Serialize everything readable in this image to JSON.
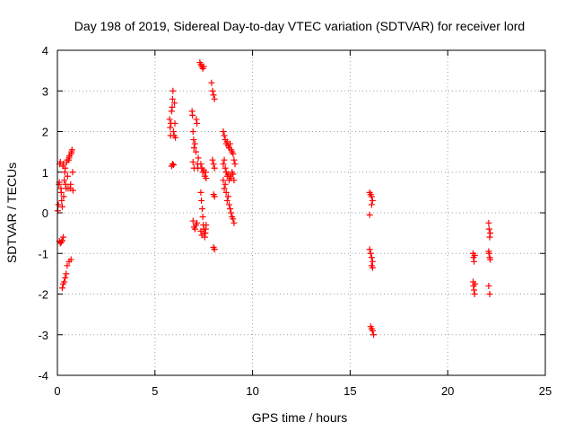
{
  "chart_data": {
    "type": "scatter",
    "title": "Day 198 of 2019, Sidereal Day-to-day VTEC variation (SDTVAR) for receiver lord",
    "xlabel": "GPS time / hours",
    "ylabel": "SDTVAR / TECUs",
    "xlim": [
      0,
      25
    ],
    "ylim": [
      -4,
      4
    ],
    "xticks": [
      0,
      5,
      10,
      15,
      20,
      25
    ],
    "yticks": [
      -4,
      -3,
      -2,
      -1,
      0,
      1,
      2,
      3,
      4
    ],
    "grid": true,
    "marker": "+",
    "series": [
      {
        "name": "SDTVAR",
        "color": "#ff0000",
        "points": [
          [
            0.02,
            0.05
          ],
          [
            0.05,
            0.2
          ],
          [
            0.08,
            0.7
          ],
          [
            0.1,
            0.75
          ],
          [
            0.12,
            1.2
          ],
          [
            0.15,
            1.25
          ],
          [
            0.18,
            0.6
          ],
          [
            0.2,
            0.5
          ],
          [
            0.22,
            0.3
          ],
          [
            0.25,
            0.15
          ],
          [
            0.28,
            1.15
          ],
          [
            0.3,
            1.2
          ],
          [
            0.32,
            0.4
          ],
          [
            0.35,
            0.8
          ],
          [
            0.38,
            1.0
          ],
          [
            0.4,
            1.1
          ],
          [
            0.42,
            0.7
          ],
          [
            0.45,
            0.6
          ],
          [
            0.48,
            1.25
          ],
          [
            0.5,
            1.3
          ],
          [
            0.52,
            0.9
          ],
          [
            0.55,
            0.6
          ],
          [
            0.58,
            1.3
          ],
          [
            0.6,
            1.35
          ],
          [
            0.62,
            1.4
          ],
          [
            0.65,
            0.6
          ],
          [
            0.68,
            0.7
          ],
          [
            0.7,
            1.45
          ],
          [
            0.72,
            1.5
          ],
          [
            0.75,
            1.55
          ],
          [
            0.78,
            1.0
          ],
          [
            0.8,
            0.55
          ],
          [
            0.1,
            -0.7
          ],
          [
            0.15,
            -0.75
          ],
          [
            0.2,
            -0.72
          ],
          [
            0.25,
            -0.68
          ],
          [
            0.3,
            -0.6
          ],
          [
            0.25,
            -1.85
          ],
          [
            0.3,
            -1.75
          ],
          [
            0.35,
            -1.7
          ],
          [
            0.4,
            -1.6
          ],
          [
            0.45,
            -1.5
          ],
          [
            0.5,
            -1.3
          ],
          [
            0.6,
            -1.2
          ],
          [
            0.7,
            -1.15
          ],
          [
            5.75,
            2.3
          ],
          [
            5.78,
            2.1
          ],
          [
            5.8,
            1.9
          ],
          [
            5.82,
            2.2
          ],
          [
            5.85,
            2.5
          ],
          [
            5.88,
            2.6
          ],
          [
            5.9,
            2.8
          ],
          [
            5.92,
            3.0
          ],
          [
            5.95,
            2.0
          ],
          [
            5.98,
            1.9
          ],
          [
            6.0,
            2.7
          ],
          [
            6.02,
            2.2
          ],
          [
            6.05,
            1.85
          ],
          [
            5.85,
            1.15
          ],
          [
            5.9,
            1.2
          ],
          [
            5.95,
            1.18
          ],
          [
            6.9,
            2.5
          ],
          [
            6.92,
            2.4
          ],
          [
            6.95,
            2.0
          ],
          [
            6.98,
            1.8
          ],
          [
            7.0,
            1.6
          ],
          [
            7.05,
            1.7
          ],
          [
            7.1,
            1.5
          ],
          [
            7.12,
            2.3
          ],
          [
            7.15,
            2.2
          ],
          [
            7.18,
            1.2
          ],
          [
            7.2,
            1.1
          ],
          [
            7.22,
            1.35
          ],
          [
            6.95,
            1.25
          ],
          [
            7.0,
            1.1
          ],
          [
            6.95,
            -0.2
          ],
          [
            7.0,
            -0.35
          ],
          [
            7.05,
            -0.4
          ],
          [
            7.1,
            -0.3
          ],
          [
            7.15,
            -0.25
          ],
          [
            7.3,
            3.7
          ],
          [
            7.35,
            3.65
          ],
          [
            7.4,
            3.6
          ],
          [
            7.45,
            3.55
          ],
          [
            7.5,
            3.6
          ],
          [
            7.35,
            1.2
          ],
          [
            7.4,
            1.1
          ],
          [
            7.45,
            1.0
          ],
          [
            7.5,
            1.05
          ],
          [
            7.55,
            0.9
          ],
          [
            7.6,
            1.0
          ],
          [
            7.62,
            0.85
          ],
          [
            7.35,
            0.5
          ],
          [
            7.38,
            0.3
          ],
          [
            7.42,
            0.1
          ],
          [
            7.45,
            -0.1
          ],
          [
            7.48,
            -0.3
          ],
          [
            7.5,
            -0.4
          ],
          [
            7.52,
            -0.5
          ],
          [
            7.55,
            -0.6
          ],
          [
            7.58,
            -0.5
          ],
          [
            7.6,
            -0.4
          ],
          [
            7.62,
            -0.3
          ],
          [
            7.35,
            -0.45
          ],
          [
            7.4,
            -0.55
          ],
          [
            7.9,
            3.2
          ],
          [
            7.95,
            3.0
          ],
          [
            8.0,
            2.9
          ],
          [
            8.05,
            2.8
          ],
          [
            7.95,
            1.3
          ],
          [
            8.0,
            1.2
          ],
          [
            8.05,
            1.1
          ],
          [
            8.0,
            0.45
          ],
          [
            8.05,
            0.4
          ],
          [
            8.0,
            -0.85
          ],
          [
            8.05,
            -0.9
          ],
          [
            8.5,
            2.0
          ],
          [
            8.55,
            1.9
          ],
          [
            8.6,
            1.8
          ],
          [
            8.65,
            1.7
          ],
          [
            8.7,
            1.75
          ],
          [
            8.75,
            1.65
          ],
          [
            8.8,
            1.6
          ],
          [
            8.85,
            1.7
          ],
          [
            8.9,
            1.55
          ],
          [
            8.95,
            1.5
          ],
          [
            9.0,
            1.45
          ],
          [
            9.05,
            1.3
          ],
          [
            9.1,
            1.2
          ],
          [
            8.5,
            1.2
          ],
          [
            8.55,
            1.3
          ],
          [
            8.6,
            1.1
          ],
          [
            8.65,
            1.0
          ],
          [
            8.7,
            0.9
          ],
          [
            8.75,
            0.95
          ],
          [
            8.8,
            0.8
          ],
          [
            8.85,
            0.9
          ],
          [
            8.9,
            0.85
          ],
          [
            8.95,
            1.0
          ],
          [
            9.0,
            0.95
          ],
          [
            9.05,
            0.8
          ],
          [
            8.5,
            0.8
          ],
          [
            8.55,
            0.6
          ],
          [
            8.6,
            0.7
          ],
          [
            8.65,
            0.5
          ],
          [
            8.7,
            0.3
          ],
          [
            8.75,
            0.4
          ],
          [
            8.8,
            0.2
          ],
          [
            8.85,
            0.1
          ],
          [
            8.9,
            0.0
          ],
          [
            8.95,
            -0.1
          ],
          [
            9.0,
            -0.15
          ],
          [
            9.05,
            -0.25
          ],
          [
            16.0,
            0.5
          ],
          [
            16.05,
            0.45
          ],
          [
            16.1,
            0.4
          ],
          [
            16.15,
            0.3
          ],
          [
            16.1,
            0.2
          ],
          [
            16.0,
            -0.05
          ],
          [
            16.0,
            -0.9
          ],
          [
            16.05,
            -1.0
          ],
          [
            16.1,
            -1.1
          ],
          [
            16.15,
            -1.2
          ],
          [
            16.1,
            -1.3
          ],
          [
            16.15,
            -1.35
          ],
          [
            16.05,
            -2.8
          ],
          [
            16.1,
            -2.85
          ],
          [
            16.15,
            -2.9
          ],
          [
            16.2,
            -3.0
          ],
          [
            21.3,
            -1.0
          ],
          [
            21.32,
            -1.1
          ],
          [
            21.35,
            -1.2
          ],
          [
            21.38,
            -1.05
          ],
          [
            21.3,
            -1.7
          ],
          [
            21.32,
            -1.8
          ],
          [
            21.35,
            -1.9
          ],
          [
            21.38,
            -2.0
          ],
          [
            21.4,
            -1.75
          ],
          [
            22.1,
            -0.25
          ],
          [
            22.12,
            -0.4
          ],
          [
            22.15,
            -0.6
          ],
          [
            22.18,
            -0.5
          ],
          [
            22.1,
            -0.95
          ],
          [
            22.12,
            -1.0
          ],
          [
            22.15,
            -1.1
          ],
          [
            22.18,
            -1.15
          ],
          [
            22.1,
            -1.8
          ],
          [
            22.15,
            -2.0
          ]
        ]
      }
    ]
  }
}
